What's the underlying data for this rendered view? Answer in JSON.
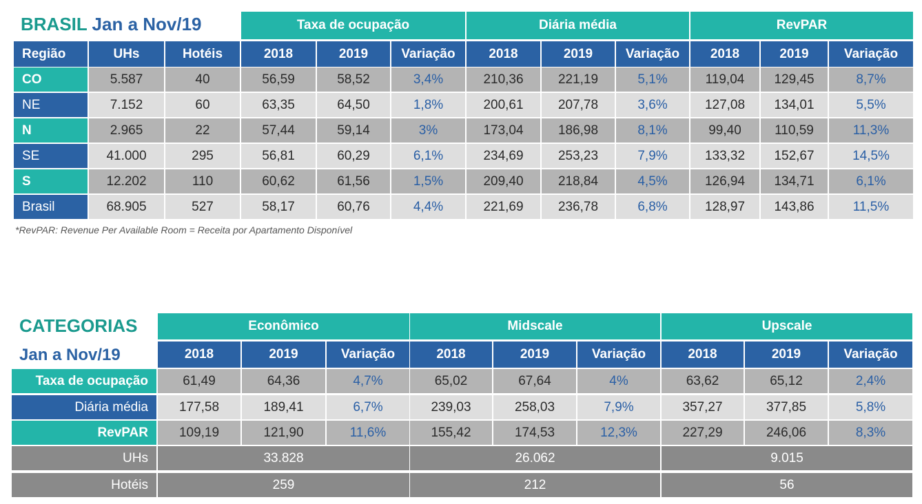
{
  "brasil": {
    "title_main": "BRASIL",
    "title_period": "Jan a Nov/19",
    "groups": [
      "Taxa de ocupação",
      "Diária média",
      "RevPAR"
    ],
    "headers": [
      "Região",
      "UHs",
      "Hotéis",
      "2018",
      "2019",
      "Variação",
      "2018",
      "2019",
      "Variação",
      "2018",
      "2019",
      "Variação"
    ],
    "rows": [
      [
        "CO",
        "5.587",
        "40",
        "56,59",
        "58,52",
        "3,4%",
        "210,36",
        "221,19",
        "5,1%",
        "119,04",
        "129,45",
        "8,7%"
      ],
      [
        "NE",
        "7.152",
        "60",
        "63,35",
        "64,50",
        "1,8%",
        "200,61",
        "207,78",
        "3,6%",
        "127,08",
        "134,01",
        "5,5%"
      ],
      [
        "N",
        "2.965",
        "22",
        "57,44",
        "59,14",
        "3%",
        "173,04",
        "186,98",
        "8,1%",
        "99,40",
        "110,59",
        "11,3%"
      ],
      [
        "SE",
        "41.000",
        "295",
        "56,81",
        "60,29",
        "6,1%",
        "234,69",
        "253,23",
        "7,9%",
        "133,32",
        "152,67",
        "14,5%"
      ],
      [
        "S",
        "12.202",
        "110",
        "60,62",
        "61,56",
        "1,5%",
        "209,40",
        "218,84",
        "4,5%",
        "126,94",
        "134,71",
        "6,1%"
      ],
      [
        "Brasil",
        "68.905",
        "527",
        "58,17",
        "60,76",
        "4,4%",
        "221,69",
        "236,78",
        "6,8%",
        "128,97",
        "143,86",
        "11,5%"
      ]
    ],
    "footnote": "*RevPAR: Revenue Per Available Room = Receita por Apartamento Disponível"
  },
  "categorias": {
    "title_main": "CATEGORIAS",
    "title_period": "Jan a Nov/19",
    "groups": [
      "Econômico",
      "Midscale",
      "Upscale"
    ],
    "subheaders": [
      "2018",
      "2019",
      "Variação",
      "2018",
      "2019",
      "Variação",
      "2018",
      "2019",
      "Variação"
    ],
    "rows": [
      {
        "label": "Taxa de ocupação",
        "values": [
          "61,49",
          "64,36",
          "4,7%",
          "65,02",
          "67,64",
          "4%",
          "63,62",
          "65,12",
          "2,4%"
        ]
      },
      {
        "label": "Diária média",
        "values": [
          "177,58",
          "189,41",
          "6,7%",
          "239,03",
          "258,03",
          "7,9%",
          "357,27",
          "377,85",
          "5,8%"
        ]
      },
      {
        "label": "RevPAR",
        "values": [
          "109,19",
          "121,90",
          "11,6%",
          "155,42",
          "174,53",
          "12,3%",
          "227,29",
          "246,06",
          "8,3%"
        ]
      }
    ],
    "totals": [
      {
        "label": "UHs",
        "values": [
          "33.828",
          "26.062",
          "9.015"
        ]
      },
      {
        "label": "Hotéis",
        "values": [
          "259",
          "212",
          "56"
        ]
      }
    ]
  },
  "colors": {
    "teal": "#23b5a9",
    "blue": "#2b62a4",
    "variation_text": "#2a5fa5",
    "gray_total": "#8a8a8a"
  }
}
